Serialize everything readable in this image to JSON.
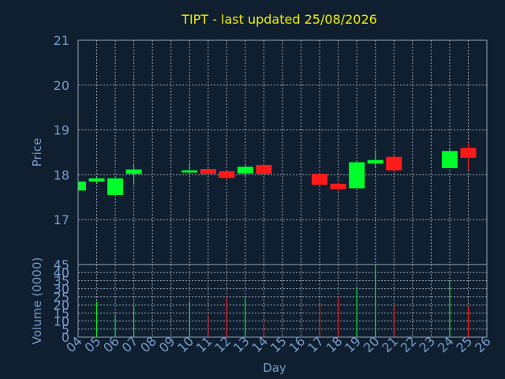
{
  "colors": {
    "background": "#0f1f30",
    "title": "#f0f000",
    "axis_text": "#7a9cc8",
    "grid": "#9aa6b8",
    "up": "#00ff2a",
    "down": "#ff1a1a"
  },
  "chart_data": [
    {
      "type": "candlestick",
      "title": "TIPT - last updated 25/08/2026",
      "ylabel": "Price",
      "ylim": [
        16,
        21
      ],
      "yticks": [
        17,
        18,
        19,
        20,
        21
      ],
      "grid": true,
      "x": [
        "04",
        "05",
        "06",
        "07",
        "08",
        "09",
        "10",
        "11",
        "12",
        "13",
        "14",
        "15",
        "16",
        "17",
        "18",
        "19",
        "20",
        "21",
        "22",
        "23",
        "24",
        "25",
        "26"
      ],
      "candles": [
        {
          "day": "04",
          "open": 17.65,
          "high": 17.85,
          "low": 17.65,
          "close": 17.85
        },
        {
          "day": "05",
          "open": 17.85,
          "high": 17.95,
          "low": 17.8,
          "close": 17.92
        },
        {
          "day": "06",
          "open": 17.55,
          "high": 17.93,
          "low": 17.55,
          "close": 17.92
        },
        {
          "day": "07",
          "open": 18.02,
          "high": 18.22,
          "low": 17.78,
          "close": 18.12
        },
        {
          "day": "10",
          "open": 18.05,
          "high": 18.27,
          "low": 18.02,
          "close": 18.1
        },
        {
          "day": "11",
          "open": 18.13,
          "high": 18.16,
          "low": 18.02,
          "close": 18.02
        },
        {
          "day": "12",
          "open": 18.08,
          "high": 18.1,
          "low": 17.88,
          "close": 17.93
        },
        {
          "day": "13",
          "open": 18.03,
          "high": 18.22,
          "low": 17.97,
          "close": 18.18
        },
        {
          "day": "14",
          "open": 18.22,
          "high": 18.25,
          "low": 18.02,
          "close": 18.02
        },
        {
          "day": "17",
          "open": 18.02,
          "high": 18.02,
          "low": 17.75,
          "close": 17.78
        },
        {
          "day": "18",
          "open": 17.8,
          "high": 17.83,
          "low": 17.62,
          "close": 17.68
        },
        {
          "day": "19",
          "open": 17.7,
          "high": 18.28,
          "low": 17.7,
          "close": 18.28
        },
        {
          "day": "20",
          "open": 18.25,
          "high": 18.55,
          "low": 18.15,
          "close": 18.33
        },
        {
          "day": "21",
          "open": 18.4,
          "high": 18.45,
          "low": 18.1,
          "close": 18.1
        },
        {
          "day": "24",
          "open": 18.15,
          "high": 18.58,
          "low": 18.15,
          "close": 18.53
        },
        {
          "day": "25",
          "open": 18.6,
          "high": 18.72,
          "low": 18.1,
          "close": 18.38
        }
      ]
    },
    {
      "type": "bar",
      "ylabel": "Volume (0000)",
      "xlabel": "Day",
      "ylim": [
        0,
        45
      ],
      "yticks": [
        0,
        5,
        10,
        15,
        20,
        25,
        30,
        35,
        40,
        45
      ],
      "grid": true,
      "x": [
        "04",
        "05",
        "06",
        "07",
        "08",
        "09",
        "10",
        "11",
        "12",
        "13",
        "14",
        "15",
        "16",
        "17",
        "18",
        "19",
        "20",
        "21",
        "22",
        "23",
        "24",
        "25",
        "26"
      ],
      "volumes": [
        {
          "day": "05",
          "value": 22,
          "direction": "up"
        },
        {
          "day": "06",
          "value": 14,
          "direction": "up"
        },
        {
          "day": "07",
          "value": 20,
          "direction": "up"
        },
        {
          "day": "10",
          "value": 22,
          "direction": "up"
        },
        {
          "day": "11",
          "value": 14,
          "direction": "down"
        },
        {
          "day": "12",
          "value": 25,
          "direction": "down"
        },
        {
          "day": "13",
          "value": 24,
          "direction": "up"
        },
        {
          "day": "14",
          "value": 10,
          "direction": "down"
        },
        {
          "day": "17",
          "value": 21,
          "direction": "down"
        },
        {
          "day": "18",
          "value": 25,
          "direction": "down"
        },
        {
          "day": "19",
          "value": 30,
          "direction": "up"
        },
        {
          "day": "20",
          "value": 44,
          "direction": "up"
        },
        {
          "day": "21",
          "value": 20,
          "direction": "down"
        },
        {
          "day": "24",
          "value": 35,
          "direction": "up"
        },
        {
          "day": "25",
          "value": 19,
          "direction": "down"
        }
      ]
    }
  ]
}
